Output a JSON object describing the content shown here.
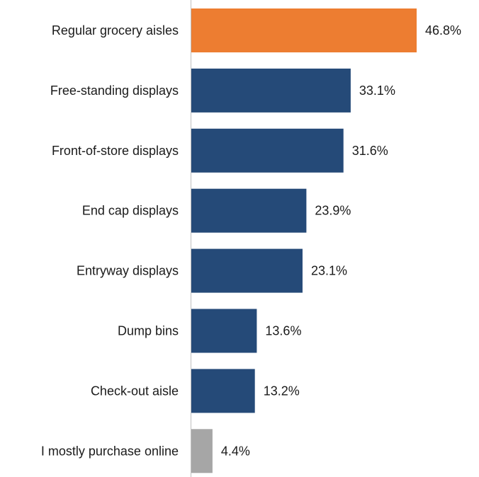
{
  "chart_data": {
    "type": "bar",
    "orientation": "horizontal",
    "categories": [
      "Regular grocery aisles",
      "Free-standing displays",
      "Front-of-store displays",
      "End cap displays",
      "Entryway displays",
      "Dump bins",
      "Check-out aisle",
      "I mostly purchase online"
    ],
    "values": [
      46.8,
      33.1,
      31.6,
      23.9,
      23.1,
      13.6,
      13.2,
      4.4
    ],
    "value_labels": [
      "46.8%",
      "33.1%",
      "31.6%",
      "23.9%",
      "23.1%",
      "13.6%",
      "13.2%",
      "4.4%"
    ],
    "bar_colors": [
      "#ED7D31",
      "#254A78",
      "#254A78",
      "#254A78",
      "#254A78",
      "#254A78",
      "#254A78",
      "#A6A6A6"
    ],
    "axis_color": "#BFBFBF",
    "xlim": [
      0,
      50
    ],
    "grid": false,
    "legend": "none"
  }
}
